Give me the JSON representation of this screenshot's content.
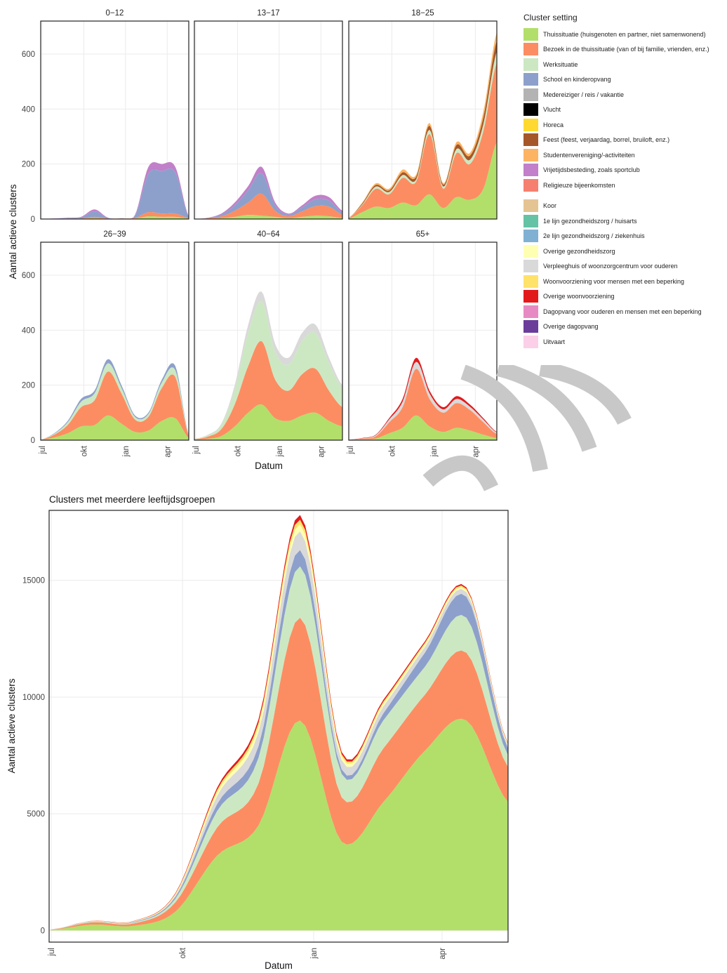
{
  "legend": {
    "title": "Cluster setting",
    "items": [
      {
        "label": "Thuissituatie (huisgenoten en partner, niet samenwonend)",
        "color": "#b2df6a"
      },
      {
        "label": "Bezoek in de thuissituatie (van of bij familie, vrienden, enz.)",
        "color": "#fc8d62"
      },
      {
        "label": "Werksituatie",
        "color": "#cce8c2"
      },
      {
        "label": "School en kinderopvang",
        "color": "#8da0cb"
      },
      {
        "label": "Medereiziger / reis / vakantie",
        "color": "#b3b3b3"
      },
      {
        "label": "Vlucht",
        "color": "#000000"
      },
      {
        "label": "Horeca",
        "color": "#ffd92f"
      },
      {
        "label": "Feest (feest, verjaardag, borrel, bruiloft, enz.)",
        "color": "#a6572a"
      },
      {
        "label": "Studentenvereniging/-activiteiten",
        "color": "#fdb462"
      },
      {
        "label": "Vrijetijdsbesteding, zoals sportclub",
        "color": "#c180c9"
      },
      {
        "label": "Religieuze bijeenkomsten",
        "color": "#f6806f"
      },
      {
        "label": "Koor",
        "color": "#e5c494"
      },
      {
        "label": "1e lijn gezondheidszorg / huisarts",
        "color": "#66c2a5"
      },
      {
        "label": "2e lijn gezondheidszorg / ziekenhuis",
        "color": "#80b1d3"
      },
      {
        "label": "Overige gezondheidszorg",
        "color": "#ffffb3"
      },
      {
        "label": "Verpleeghuis of woonzorgcentrum voor ouderen",
        "color": "#d9d9d9"
      },
      {
        "label": "Woonvoorziening voor mensen met een beperking",
        "color": "#ffe26a"
      },
      {
        "label": "Overige woonvoorziening",
        "color": "#e31a1c"
      },
      {
        "label": "Dagopvang voor ouderen en mensen met een beperking",
        "color": "#e78ac3"
      },
      {
        "label": "Overige dagopvang",
        "color": "#6a3d9a"
      },
      {
        "label": "Uitvaart",
        "color": "#fbcfe8"
      }
    ]
  },
  "chart_data": [
    {
      "type": "area",
      "stacked": true,
      "faceted": true,
      "xlabel": "Datum",
      "ylabel": "Aantal actieve clusters",
      "x_ticks": [
        "jul",
        "okt",
        "jan",
        "apr"
      ],
      "y_ticks": [
        0,
        200,
        400,
        600
      ],
      "ylim": [
        0,
        720
      ],
      "grid": true,
      "legend_position": "right",
      "time_points": [
        "jul",
        "aug",
        "sep",
        "okt",
        "nov",
        "dec",
        "jan",
        "feb",
        "mrt",
        "apr",
        "mei",
        "jun"
      ],
      "facets": [
        {
          "title": "0−12",
          "totals": [
            0,
            2,
            5,
            8,
            35,
            5,
            3,
            15,
            190,
            200,
            190,
            10
          ],
          "series": [
            {
              "color": "#b2df6a",
              "values": [
                0,
                0,
                1,
                1,
                3,
                1,
                1,
                2,
                10,
                8,
                8,
                2
              ]
            },
            {
              "color": "#fc8d62",
              "values": [
                0,
                0,
                1,
                1,
                5,
                1,
                1,
                2,
                15,
                12,
                12,
                2
              ]
            },
            {
              "color": "#8da0cb",
              "values": [
                0,
                1,
                2,
                4,
                20,
                2,
                1,
                8,
                140,
                155,
                150,
                4
              ]
            },
            {
              "color": "#c180c9",
              "values": [
                0,
                1,
                1,
                2,
                7,
                1,
                0,
                3,
                25,
                25,
                20,
                2
              ]
            }
          ]
        },
        {
          "title": "13−17",
          "totals": [
            0,
            5,
            20,
            60,
            120,
            190,
            60,
            20,
            50,
            85,
            80,
            30
          ],
          "series": [
            {
              "color": "#b2df6a",
              "values": [
                0,
                1,
                3,
                8,
                15,
                12,
                8,
                3,
                8,
                12,
                10,
                4
              ]
            },
            {
              "color": "#fc8d62",
              "values": [
                0,
                2,
                7,
                22,
                45,
                80,
                22,
                7,
                20,
                35,
                35,
                12
              ]
            },
            {
              "color": "#8da0cb",
              "values": [
                0,
                1,
                6,
                20,
                45,
                75,
                20,
                6,
                15,
                25,
                22,
                8
              ]
            },
            {
              "color": "#c180c9",
              "values": [
                0,
                1,
                4,
                10,
                15,
                23,
                10,
                4,
                7,
                13,
                13,
                6
              ]
            }
          ]
        },
        {
          "title": "18−25",
          "totals": [
            5,
            60,
            130,
            110,
            180,
            160,
            350,
            130,
            280,
            240,
            390,
            680
          ],
          "series": [
            {
              "color": "#b2df6a",
              "values": [
                2,
                25,
                45,
                40,
                60,
                50,
                90,
                40,
                80,
                70,
                110,
                280
              ]
            },
            {
              "color": "#fc8d62",
              "values": [
                2,
                25,
                65,
                50,
                90,
                85,
                220,
                70,
                160,
                130,
                210,
                290
              ]
            },
            {
              "color": "#cce8c2",
              "values": [
                0,
                3,
                8,
                8,
                10,
                8,
                15,
                8,
                15,
                15,
                25,
                40
              ]
            },
            {
              "color": "#a6572a",
              "values": [
                0,
                4,
                6,
                6,
                10,
                10,
                15,
                7,
                15,
                15,
                25,
                40
              ]
            },
            {
              "color": "#fdb462",
              "values": [
                1,
                3,
                6,
                6,
                10,
                7,
                10,
                5,
                10,
                10,
                20,
                30
              ]
            }
          ]
        },
        {
          "title": "26−39",
          "totals": [
            2,
            25,
            70,
            150,
            180,
            295,
            200,
            90,
            100,
            220,
            270,
            20
          ],
          "series": [
            {
              "color": "#b2df6a",
              "values": [
                1,
                10,
                25,
                50,
                55,
                90,
                60,
                30,
                35,
                70,
                80,
                8
              ]
            },
            {
              "color": "#fc8d62",
              "values": [
                1,
                10,
                30,
                70,
                90,
                160,
                110,
                45,
                50,
                120,
                150,
                8
              ]
            },
            {
              "color": "#cce8c2",
              "values": [
                0,
                3,
                10,
                20,
                25,
                30,
                20,
                10,
                10,
                20,
                25,
                2
              ]
            },
            {
              "color": "#8da0cb",
              "values": [
                0,
                2,
                5,
                10,
                10,
                15,
                10,
                5,
                5,
                10,
                15,
                2
              ]
            }
          ]
        },
        {
          "title": "40−64",
          "totals": [
            5,
            20,
            60,
            200,
            420,
            540,
            350,
            300,
            390,
            420,
            300,
            200
          ],
          "series": [
            {
              "color": "#b2df6a",
              "values": [
                2,
                5,
                15,
                50,
                100,
                130,
                80,
                70,
                90,
                100,
                70,
                50
              ]
            },
            {
              "color": "#fc8d62",
              "values": [
                2,
                8,
                25,
                80,
                170,
                230,
                140,
                110,
                150,
                160,
                110,
                70
              ]
            },
            {
              "color": "#cce8c2",
              "values": [
                1,
                5,
                15,
                55,
                120,
                145,
                100,
                95,
                120,
                130,
                100,
                70
              ]
            },
            {
              "color": "#d9d9d9",
              "values": [
                0,
                2,
                5,
                15,
                30,
                35,
                30,
                25,
                30,
                30,
                20,
                10
              ]
            }
          ]
        },
        {
          "title": "65+",
          "totals": [
            2,
            8,
            20,
            80,
            150,
            300,
            180,
            120,
            160,
            130,
            80,
            30
          ],
          "series": [
            {
              "color": "#b2df6a",
              "values": [
                1,
                3,
                6,
                25,
                45,
                90,
                50,
                30,
                45,
                35,
                20,
                8
              ]
            },
            {
              "color": "#fc8d62",
              "values": [
                1,
                3,
                8,
                40,
                75,
                170,
                100,
                70,
                90,
                75,
                45,
                15
              ]
            },
            {
              "color": "#d9d9d9",
              "values": [
                0,
                1,
                4,
                10,
                20,
                25,
                20,
                12,
                15,
                12,
                10,
                5
              ]
            },
            {
              "color": "#e31a1c",
              "values": [
                0,
                1,
                2,
                5,
                10,
                15,
                10,
                8,
                10,
                8,
                5,
                2
              ]
            }
          ]
        }
      ]
    },
    {
      "type": "area",
      "stacked": true,
      "title": "Clusters met meerdere leeftijdsgroepen",
      "xlabel": "Datum",
      "ylabel": "Aantal actieve clusters",
      "x_ticks": [
        "jul",
        "okt",
        "jan",
        "apr"
      ],
      "y_ticks": [
        0,
        5000,
        10000,
        15000
      ],
      "ylim": [
        -500,
        18000
      ],
      "grid": true,
      "time_points": [
        "jul",
        "aug",
        "sep",
        "okt",
        "nov",
        "dec",
        "jan",
        "feb",
        "mrt",
        "apr",
        "mei",
        "jun"
      ],
      "series": [
        {
          "label": "Thuissituatie (huisgenoten en partner, niet samenwonend)",
          "color": "#b2df6a",
          "values": [
            20,
            250,
            200,
            800,
            3200,
            4500,
            9000,
            3800,
            5500,
            7700,
            9000,
            5500
          ]
        },
        {
          "label": "Bezoek in de thuissituatie (van of bij familie, vrienden, enz.)",
          "color": "#fc8d62",
          "values": [
            10,
            100,
            100,
            400,
            1200,
            1800,
            4400,
            1900,
            2300,
            2400,
            2900,
            1500
          ]
        },
        {
          "label": "Werksituatie",
          "color": "#cce8c2",
          "values": [
            5,
            30,
            40,
            150,
            700,
            1100,
            2200,
            1000,
            1200,
            1200,
            1500,
            500
          ]
        },
        {
          "label": "School en kinderopvang",
          "color": "#8da0cb",
          "values": [
            2,
            10,
            20,
            80,
            300,
            500,
            700,
            200,
            300,
            600,
            900,
            300
          ]
        },
        {
          "label": "Verpleeghuis of woonzorgcentrum voor ouderen",
          "color": "#d9d9d9",
          "values": [
            2,
            10,
            15,
            60,
            350,
            600,
            800,
            400,
            300,
            250,
            200,
            100
          ]
        },
        {
          "label": "Overige gezondheidszorg",
          "color": "#ffffb3",
          "values": [
            1,
            5,
            10,
            40,
            150,
            250,
            300,
            150,
            120,
            100,
            80,
            50
          ]
        },
        {
          "label": "Woonvoorziening voor mensen met een beperking",
          "color": "#ffe26a",
          "values": [
            1,
            5,
            10,
            30,
            100,
            150,
            200,
            100,
            80,
            70,
            60,
            30
          ]
        },
        {
          "label": "Overige woonvoorziening",
          "color": "#e31a1c",
          "values": [
            1,
            5,
            10,
            30,
            100,
            150,
            200,
            100,
            80,
            70,
            60,
            30
          ]
        }
      ]
    }
  ],
  "logo": {
    "name": "RIVM watermark"
  }
}
